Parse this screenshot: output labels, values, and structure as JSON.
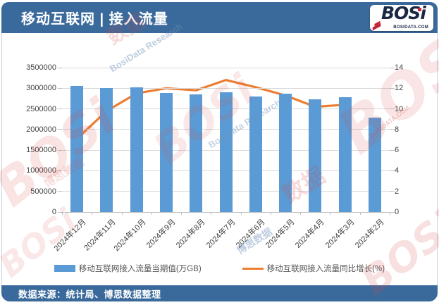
{
  "header": {
    "title": "移动互联网 | 接入流量"
  },
  "logo": {
    "text": "BOSi",
    "site": "BOSIDATA.COM"
  },
  "watermark": {
    "logo": "BOSi",
    "site": "BOSIDATA.COM",
    "cn": "博思数据",
    "en": "BosiData Research",
    "short": "数据"
  },
  "chart_data": {
    "type": "bar",
    "categories": [
      "2024年12月",
      "2024年11月",
      "2024年10月",
      "2024年9月",
      "2024年8月",
      "2024年7月",
      "2024年6月",
      "2024年5月",
      "2024年4月",
      "2024年3月",
      "2024年2月"
    ],
    "series": [
      {
        "name": "移动互联网接入流量当期值(万GB)",
        "type": "bar",
        "axis": "left",
        "color": "#5B9BD5",
        "values": [
          3060000,
          3000000,
          3020000,
          2890000,
          2860000,
          2900000,
          2800000,
          2870000,
          2740000,
          2780000,
          2290000
        ]
      },
      {
        "name": "移动互联网接入流量同比增长(%)",
        "type": "line",
        "axis": "right",
        "color": "#ED7D31",
        "values": [
          7.1,
          9.8,
          11.5,
          12.0,
          11.8,
          12.8,
          12.1,
          11.3,
          10.2,
          10.4,
          null
        ]
      }
    ],
    "left_axis": {
      "min": 0,
      "max": 3500000,
      "step": 500000,
      "ticks": [
        "0",
        "500000",
        "1000000",
        "1500000",
        "2000000",
        "2500000",
        "3000000",
        "3500000"
      ]
    },
    "right_axis": {
      "min": 0,
      "max": 14,
      "step": 2,
      "ticks": [
        "0",
        "2",
        "4",
        "6",
        "8",
        "10",
        "12",
        "14"
      ]
    },
    "grid": true,
    "legend_position": "bottom",
    "title": "移动互联网 | 接入流量"
  },
  "footer": {
    "source_label": "数据来源：统计局、博思数据整理"
  }
}
